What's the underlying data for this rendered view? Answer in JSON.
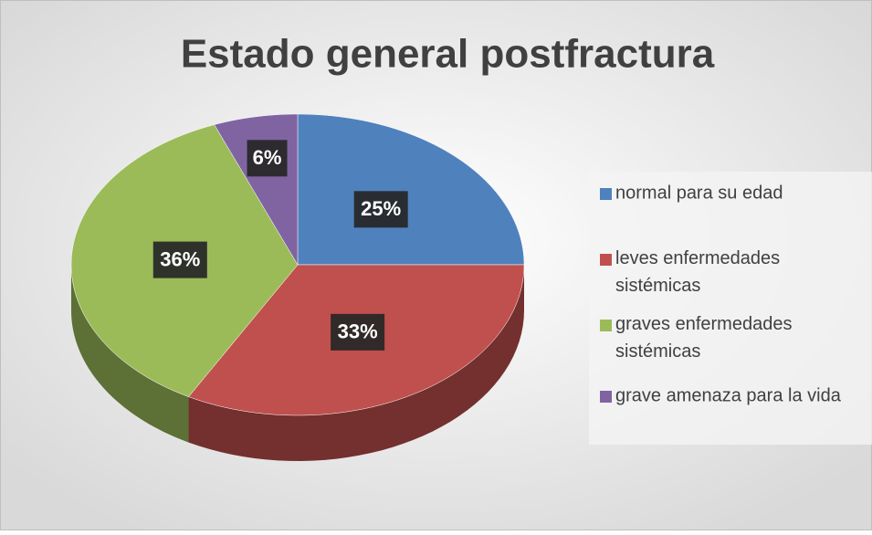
{
  "chart_data": {
    "type": "pie",
    "title": "Estado general postfractura",
    "categories": [
      "normal para su edad",
      "leves enfermedades sistémicas",
      "graves enfermedades sistémicas",
      "grave amenaza para la vida"
    ],
    "values": [
      25,
      33,
      36,
      6
    ],
    "value_labels": [
      "25%",
      "33%",
      "36%",
      "6%"
    ],
    "colors": [
      "#4f81bd",
      "#c0504d",
      "#9bbb59",
      "#8064a2"
    ],
    "legend": "right"
  }
}
